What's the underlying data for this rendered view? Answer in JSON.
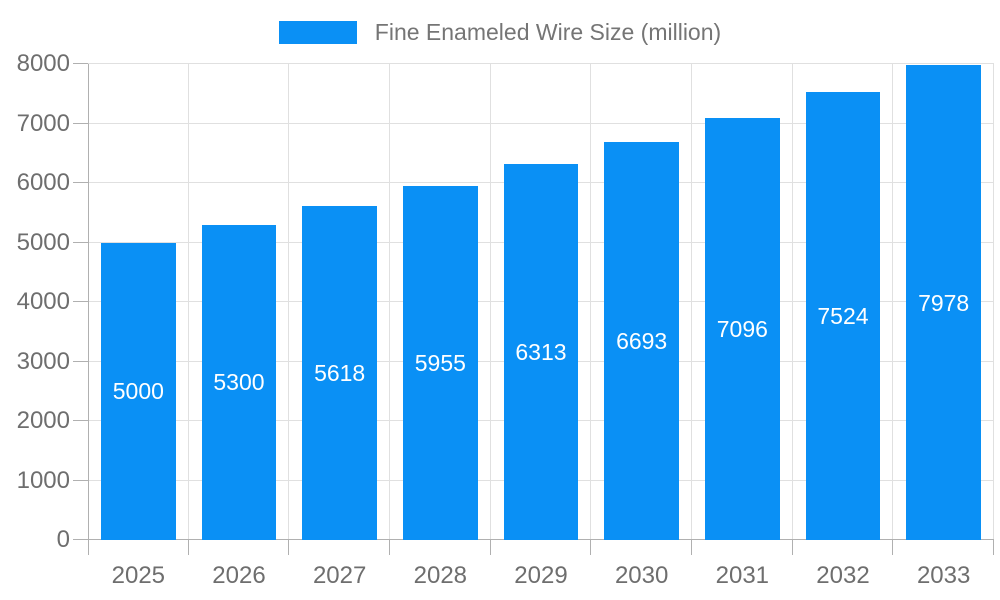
{
  "legend": {
    "label": "Fine Enameled Wire Size (million)"
  },
  "chart_data": {
    "type": "bar",
    "title": "",
    "categories": [
      "2025",
      "2026",
      "2027",
      "2028",
      "2029",
      "2030",
      "2031",
      "2032",
      "2033"
    ],
    "series": [
      {
        "name": "Fine Enameled Wire Size (million)",
        "values": [
          5000,
          5300,
          5618,
          5955,
          6313,
          6693,
          7096,
          7524,
          7978
        ]
      }
    ],
    "value_labels_shown": true,
    "xlabel": "",
    "ylabel": "",
    "ylim": [
      0,
      8000
    ],
    "ytick_step": 1000,
    "grid": "horizontal-and-vertical",
    "legend_position": "top-center",
    "colors": {
      "bar": "#0a90f5",
      "bar_value_label": "#ffffff",
      "gridline": "#e0e0e0",
      "axis_line": "#b0b0b0",
      "axis_text": "#6e6e6e",
      "legend_text": "#757575",
      "background": "#ffffff"
    }
  }
}
